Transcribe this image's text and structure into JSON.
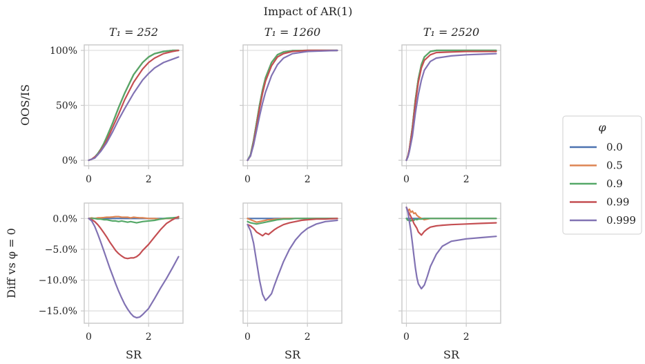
{
  "figure": {
    "suptitle": "Impact of AR(1)",
    "col_titles": [
      "T₁ = 252",
      "T₁ = 1260",
      "T₁ = 2520"
    ],
    "row_labels": [
      "OOS/IS",
      "Diff vs φ = 0"
    ],
    "xlabel": "SR"
  },
  "legend": {
    "title": "φ",
    "placement": "right",
    "entries": [
      {
        "label": "0.0",
        "color": "#4c72b0"
      },
      {
        "label": "0.5",
        "color": "#dd8452"
      },
      {
        "label": "0.9",
        "color": "#55a868"
      },
      {
        "label": "0.99",
        "color": "#c44e52"
      },
      {
        "label": "0.999",
        "color": "#8172b3"
      }
    ]
  },
  "chart_data": {
    "type": "line",
    "grid": true,
    "x_ticks": [
      0,
      2
    ],
    "xlim": [
      -0.15,
      3.15
    ],
    "rows": [
      {
        "ylabel": "OOS/IS",
        "ylim": [
          -0.05,
          1.05
        ],
        "y_ticks": [
          {
            "value": 0,
            "label": "0%"
          },
          {
            "value": 0.5,
            "label": "50%"
          },
          {
            "value": 1.0,
            "label": "100%"
          }
        ]
      },
      {
        "ylabel": "Diff vs φ = 0",
        "ylim": [
          -0.17,
          0.025
        ],
        "y_ticks": [
          {
            "value": 0,
            "label": "0.0%"
          },
          {
            "value": -0.05,
            "label": "−5.0%"
          },
          {
            "value": -0.1,
            "label": "−10.0%"
          },
          {
            "value": -0.15,
            "label": "−15.0%"
          }
        ]
      }
    ],
    "panels": [
      {
        "row": 0,
        "col": 0,
        "title": "T₁ = 252",
        "x": [
          0,
          0.1,
          0.2,
          0.3,
          0.4,
          0.5,
          0.6,
          0.8,
          1.0,
          1.2,
          1.5,
          1.8,
          2.0,
          2.2,
          2.5,
          2.8,
          3.0
        ],
        "series": [
          {
            "name": "0.0",
            "values": [
              0,
              0.01,
              0.03,
              0.06,
              0.1,
              0.15,
              0.21,
              0.34,
              0.48,
              0.61,
              0.78,
              0.89,
              0.94,
              0.97,
              0.99,
              1.0,
              1.0
            ]
          },
          {
            "name": "0.5",
            "values": [
              0,
              0.01,
              0.03,
              0.06,
              0.1,
              0.15,
              0.21,
              0.34,
              0.48,
              0.61,
              0.78,
              0.89,
              0.94,
              0.97,
              0.99,
              1.0,
              1.0
            ]
          },
          {
            "name": "0.9",
            "values": [
              0,
              0.01,
              0.03,
              0.06,
              0.1,
              0.15,
              0.21,
              0.34,
              0.48,
              0.61,
              0.78,
              0.89,
              0.94,
              0.97,
              0.99,
              1.0,
              1.0
            ]
          },
          {
            "name": "0.99",
            "values": [
              0,
              0.01,
              0.03,
              0.05,
              0.09,
              0.13,
              0.18,
              0.3,
              0.42,
              0.55,
              0.71,
              0.83,
              0.89,
              0.93,
              0.97,
              0.99,
              1.0
            ]
          },
          {
            "name": "0.999",
            "values": [
              0,
              0.01,
              0.02,
              0.05,
              0.08,
              0.12,
              0.16,
              0.26,
              0.37,
              0.47,
              0.61,
              0.73,
              0.79,
              0.84,
              0.89,
              0.92,
              0.94
            ]
          }
        ]
      },
      {
        "row": 0,
        "col": 1,
        "title": "T₁ = 1260",
        "x": [
          0,
          0.1,
          0.2,
          0.3,
          0.4,
          0.5,
          0.6,
          0.8,
          1.0,
          1.2,
          1.5,
          2.0,
          2.5,
          3.0
        ],
        "series": [
          {
            "name": "0.0",
            "values": [
              0,
              0.05,
              0.18,
              0.34,
              0.5,
              0.64,
              0.75,
              0.89,
              0.96,
              0.985,
              0.997,
              1.0,
              1.0,
              1.0
            ]
          },
          {
            "name": "0.5",
            "values": [
              0,
              0.05,
              0.18,
              0.34,
              0.5,
              0.64,
              0.75,
              0.89,
              0.96,
              0.985,
              0.997,
              1.0,
              1.0,
              1.0
            ]
          },
          {
            "name": "0.9",
            "values": [
              0,
              0.05,
              0.18,
              0.34,
              0.5,
              0.64,
              0.75,
              0.89,
              0.96,
              0.985,
              0.997,
              1.0,
              1.0,
              1.0
            ]
          },
          {
            "name": "0.99",
            "values": [
              0,
              0.04,
              0.16,
              0.31,
              0.47,
              0.61,
              0.72,
              0.86,
              0.94,
              0.97,
              0.99,
              1.0,
              1.0,
              1.0
            ]
          },
          {
            "name": "0.999",
            "values": [
              0,
              0.04,
              0.14,
              0.27,
              0.4,
              0.52,
              0.62,
              0.77,
              0.87,
              0.93,
              0.97,
              0.99,
              0.995,
              1.0
            ]
          }
        ]
      },
      {
        "row": 0,
        "col": 2,
        "title": "T₁ = 2520",
        "x": [
          0,
          0.05,
          0.1,
          0.2,
          0.3,
          0.4,
          0.5,
          0.6,
          0.8,
          1.0,
          1.5,
          2.0,
          2.5,
          3.0
        ],
        "series": [
          {
            "name": "0.0",
            "values": [
              0,
              0.04,
              0.1,
              0.3,
              0.55,
              0.74,
              0.87,
              0.94,
              0.99,
              1.0,
              1.0,
              1.0,
              1.0,
              1.0
            ]
          },
          {
            "name": "0.5",
            "values": [
              0,
              0.04,
              0.1,
              0.3,
              0.55,
              0.74,
              0.87,
              0.94,
              0.99,
              1.0,
              1.0,
              1.0,
              1.0,
              1.0
            ]
          },
          {
            "name": "0.9",
            "values": [
              0,
              0.04,
              0.1,
              0.3,
              0.55,
              0.74,
              0.87,
              0.94,
              0.99,
              1.0,
              1.0,
              1.0,
              1.0,
              1.0
            ]
          },
          {
            "name": "0.99",
            "values": [
              0,
              0.04,
              0.1,
              0.28,
              0.52,
              0.71,
              0.84,
              0.91,
              0.96,
              0.98,
              0.985,
              0.99,
              0.99,
              0.99
            ]
          },
          {
            "name": "0.999",
            "values": [
              0,
              0.03,
              0.08,
              0.22,
              0.43,
              0.6,
              0.73,
              0.82,
              0.9,
              0.93,
              0.95,
              0.96,
              0.965,
              0.97
            ]
          }
        ]
      },
      {
        "row": 1,
        "col": 0,
        "title": "",
        "x": [
          0,
          0.1,
          0.2,
          0.3,
          0.4,
          0.5,
          0.6,
          0.7,
          0.8,
          0.9,
          1.0,
          1.1,
          1.2,
          1.3,
          1.4,
          1.5,
          1.6,
          1.7,
          1.8,
          2.0,
          2.2,
          2.4,
          2.6,
          2.8,
          3.0
        ],
        "series": [
          {
            "name": "0.0",
            "values": [
              0,
              0,
              0,
              0,
              0,
              0,
              0,
              0,
              0,
              0,
              0,
              0,
              0,
              0,
              0,
              0,
              0,
              0,
              0,
              0,
              0,
              0,
              0,
              0,
              0
            ]
          },
          {
            "name": "0.5",
            "values": [
              0,
              0.001,
              0,
              0.001,
              0.001,
              0.0015,
              0.002,
              0.002,
              0.0025,
              0.003,
              0.003,
              0.002,
              0.002,
              0.002,
              0.001,
              0.002,
              0.0015,
              0.001,
              0.001,
              0,
              0,
              -0.001,
              0,
              0,
              0.001
            ]
          },
          {
            "name": "0.9",
            "values": [
              0,
              0,
              0,
              -0.001,
              -0.001,
              -0.002,
              -0.002,
              -0.003,
              -0.004,
              -0.004,
              -0.005,
              -0.004,
              -0.005,
              -0.006,
              -0.005,
              -0.006,
              -0.007,
              -0.006,
              -0.005,
              -0.004,
              -0.003,
              -0.001,
              0.0005,
              0.001,
              0.002
            ]
          },
          {
            "name": "0.99",
            "values": [
              0,
              -0.002,
              -0.005,
              -0.01,
              -0.016,
              -0.023,
              -0.03,
              -0.038,
              -0.045,
              -0.052,
              -0.057,
              -0.061,
              -0.064,
              -0.065,
              -0.064,
              -0.064,
              -0.062,
              -0.058,
              -0.052,
              -0.042,
              -0.03,
              -0.018,
              -0.008,
              -0.002,
              0.003
            ]
          },
          {
            "name": "0.999",
            "values": [
              0,
              -0.004,
              -0.013,
              -0.025,
              -0.038,
              -0.052,
              -0.066,
              -0.08,
              -0.093,
              -0.106,
              -0.118,
              -0.129,
              -0.139,
              -0.147,
              -0.154,
              -0.159,
              -0.161,
              -0.16,
              -0.156,
              -0.146,
              -0.13,
              -0.113,
              -0.097,
              -0.08,
              -0.062
            ]
          }
        ]
      },
      {
        "row": 1,
        "col": 1,
        "title": "",
        "x": [
          0,
          0.1,
          0.2,
          0.3,
          0.4,
          0.5,
          0.6,
          0.7,
          0.8,
          0.9,
          1.0,
          1.2,
          1.4,
          1.6,
          1.8,
          2.0,
          2.3,
          2.6,
          3.0
        ],
        "series": [
          {
            "name": "0.0",
            "values": [
              0,
              0,
              0,
              0,
              0,
              0,
              0,
              0,
              0,
              0,
              0,
              0,
              0,
              0,
              0,
              0,
              0,
              0,
              0
            ]
          },
          {
            "name": "0.5",
            "values": [
              0,
              -0.002,
              -0.004,
              -0.006,
              -0.005,
              -0.004,
              -0.003,
              -0.002,
              -0.002,
              -0.001,
              -0.001,
              0,
              0,
              0,
              0,
              0,
              0,
              0,
              0
            ]
          },
          {
            "name": "0.9",
            "values": [
              -0.005,
              -0.007,
              -0.008,
              -0.009,
              -0.008,
              -0.007,
              -0.006,
              -0.005,
              -0.004,
              -0.003,
              -0.002,
              -0.001,
              -0.001,
              0,
              0,
              0,
              0,
              0,
              0
            ]
          },
          {
            "name": "0.99",
            "values": [
              -0.01,
              -0.012,
              -0.016,
              -0.022,
              -0.025,
              -0.028,
              -0.024,
              -0.026,
              -0.022,
              -0.018,
              -0.015,
              -0.01,
              -0.007,
              -0.005,
              -0.003,
              -0.002,
              -0.001,
              -0.001,
              0
            ]
          },
          {
            "name": "0.999",
            "values": [
              -0.01,
              -0.02,
              -0.04,
              -0.07,
              -0.1,
              -0.123,
              -0.133,
              -0.128,
              -0.122,
              -0.108,
              -0.095,
              -0.07,
              -0.05,
              -0.035,
              -0.024,
              -0.016,
              -0.009,
              -0.005,
              -0.003
            ]
          }
        ]
      },
      {
        "row": 1,
        "col": 2,
        "title": "",
        "x": [
          0,
          0.05,
          0.1,
          0.15,
          0.2,
          0.25,
          0.3,
          0.35,
          0.4,
          0.5,
          0.6,
          0.7,
          0.8,
          1.0,
          1.2,
          1.5,
          2.0,
          2.5,
          3.0
        ],
        "series": [
          {
            "name": "0.0",
            "values": [
              0,
              0,
              0,
              0,
              0,
              0,
              0,
              0,
              0,
              0,
              0,
              0,
              0,
              0,
              0,
              0,
              0,
              0,
              0
            ]
          },
          {
            "name": "0.5",
            "values": [
              0.018,
              0.012,
              0.015,
              0.01,
              0.012,
              0.008,
              0.009,
              0.005,
              0.003,
              0,
              -0.002,
              -0.001,
              0,
              0,
              0,
              0,
              0,
              0,
              0
            ]
          },
          {
            "name": "0.9",
            "values": [
              0,
              -0.003,
              -0.001,
              -0.004,
              -0.002,
              -0.003,
              -0.001,
              -0.002,
              -0.001,
              -0.001,
              0,
              0,
              0,
              0,
              0,
              0,
              0,
              0,
              0
            ]
          },
          {
            "name": "0.99",
            "values": [
              0.018,
              0.012,
              0.008,
              0.003,
              -0.002,
              -0.008,
              -0.012,
              -0.016,
              -0.022,
              -0.027,
              -0.021,
              -0.017,
              -0.014,
              -0.012,
              -0.011,
              -0.01,
              -0.009,
              -0.008,
              -0.007
            ]
          },
          {
            "name": "0.999",
            "values": [
              0.018,
              0.01,
              -0.005,
              -0.02,
              -0.04,
              -0.06,
              -0.08,
              -0.096,
              -0.106,
              -0.114,
              -0.108,
              -0.094,
              -0.078,
              -0.058,
              -0.045,
              -0.037,
              -0.033,
              -0.031,
              -0.029
            ]
          }
        ]
      }
    ]
  }
}
